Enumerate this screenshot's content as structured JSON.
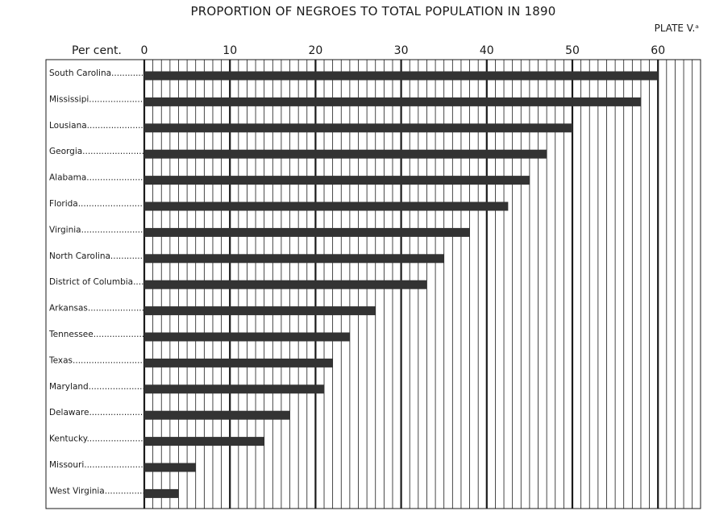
{
  "header": {
    "title": "PROPORTION OF NEGROES TO TOTAL POPULATION IN 1890",
    "plate": "PLATE V.ᵃ"
  },
  "chart_data": {
    "type": "bar",
    "orientation": "horizontal",
    "title": "PROPORTION OF NEGROES TO TOTAL POPULATION IN 1890",
    "axis_label": "Per cent.",
    "xlim": [
      0,
      65
    ],
    "ticks": [
      0,
      10,
      20,
      30,
      40,
      50,
      60
    ],
    "minor_tick_step": 1,
    "grid": true,
    "bar_color": "#333333",
    "categories": [
      "South Carolina............",
      "Mississipi.......................",
      "Lousiana.......................",
      "Georgia...........................",
      "Alabama..........................",
      "Florida.............................",
      "Virginia............................",
      "North Carolina.............",
      "District of Columbia....",
      "Arkansas.........................",
      "Tennessee......................",
      "Texas...............................",
      "Maryland.........................",
      "Delaware.........................",
      "Kentucky.........................",
      "Missouri...........................",
      "West Virginia..................."
    ],
    "values": [
      60,
      58,
      50,
      47,
      45,
      42.5,
      38,
      35,
      33,
      27,
      24,
      22,
      21,
      17,
      14,
      6,
      4
    ]
  }
}
